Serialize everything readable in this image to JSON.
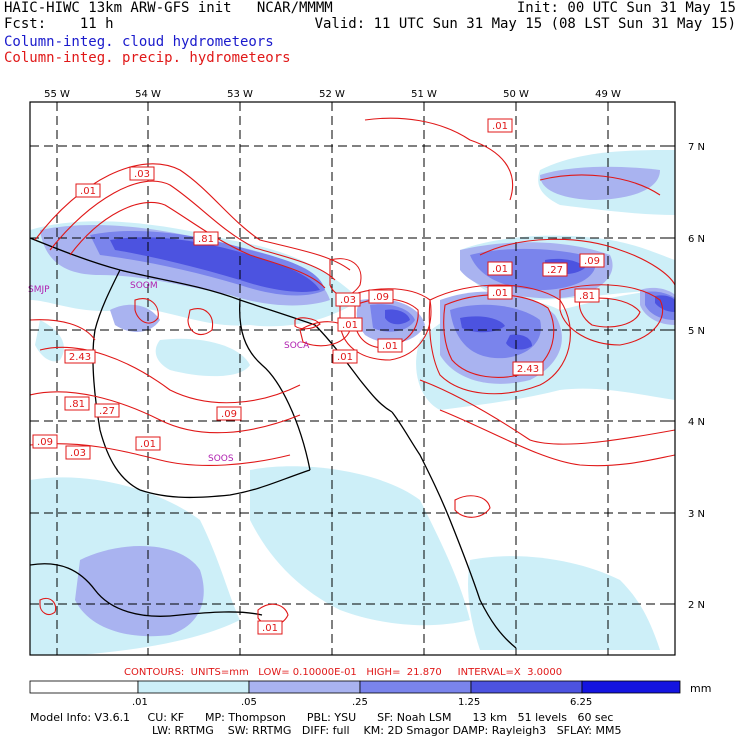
{
  "header": {
    "title_left": "HAIC-HIWC 13km ARW-GFS init   NCAR/MMMM",
    "fcst_left": "Fcst:    11 h",
    "init_right": "Init: 00 UTC Sun 31 May 15",
    "valid_right": "Valid: 11 UTC Sun 31 May 15 (08 LST Sun 31 May 15)",
    "legend_cloud": "Column-integ. cloud hydrometeors",
    "legend_precip": "Column-integ. precip. hydrometeors"
  },
  "map": {
    "lon_labels": [
      "55 W",
      "54 W",
      "53 W",
      "52 W",
      "51 W",
      "50 W",
      "49 W"
    ],
    "lat_labels": [
      "7 N",
      "6 N",
      "5 N",
      "4 N",
      "3 N",
      "2 N"
    ],
    "stations": [
      "SMJP",
      "SOOM",
      "SOCA",
      "SOOS"
    ],
    "contour_labels": [
      ".01",
      ".03",
      ".01",
      ".81",
      ".03",
      ".09",
      ".01",
      ".01",
      ".01",
      ".01",
      ".27",
      ".09",
      ".01",
      ".81",
      "2.43",
      "2.43",
      ".81",
      ".27",
      ".09",
      ".09",
      ".03",
      ".01",
      ".01"
    ],
    "colors": {
      "cloud_light": "#cdeff8",
      "cloud_mid": "#a9b3f0",
      "cloud_strong": "#7a84ec",
      "cloud_deep": "#4c53e0",
      "contour": "#e01818",
      "station": "#b020b0"
    }
  },
  "footer": {
    "contours_line": "CONTOURS:  UNITS=mm   LOW= 0.10000E-01   HIGH=  21.870     INTERVAL=X  3.0000",
    "colorbar_ticks": [
      ".01",
      ".05",
      ".25",
      "1.25",
      "6.25"
    ],
    "colorbar_units": "mm",
    "colorbar_colors": [
      "#ffffff",
      "#cdeff8",
      "#a9b3f0",
      "#7a84ec",
      "#4c53e0",
      "#1414e0"
    ],
    "model_info_line1": "Model Info: V3.6.1     CU: KF      MP: Thompson      PBL: YSU      SF: Noah LSM      13 km   51 levels   60 sec",
    "model_info_line2": "LW: RRTMG    SW: RRTMG   DIFF: full    KM: 2D Smagor DAMP: Rayleigh3   SFLAY: MM5"
  }
}
